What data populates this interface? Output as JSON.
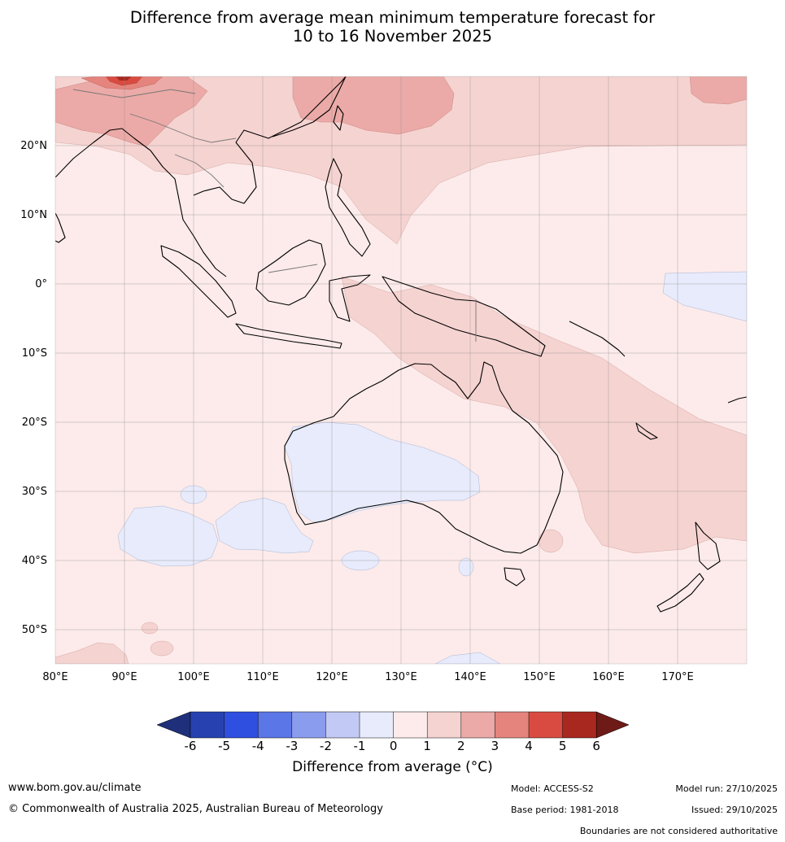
{
  "title_line1": "Difference from average mean minimum temperature forecast for",
  "title_line2": "10 to 16 November 2025",
  "lat_labels": [
    "20°N",
    "10°N",
    "0°",
    "10°S",
    "20°S",
    "30°S",
    "40°S",
    "50°S"
  ],
  "lon_labels": [
    "80°E",
    "90°E",
    "100°E",
    "110°E",
    "120°E",
    "130°E",
    "140°E",
    "150°E",
    "160°E",
    "170°E"
  ],
  "colorbar": {
    "ticks": [
      "-6",
      "-5",
      "-4",
      "-3",
      "-2",
      "-1",
      "0",
      "1",
      "2",
      "3",
      "4",
      "5",
      "6"
    ],
    "colors": [
      "#1f2f7a",
      "#2742b0",
      "#2f4fe0",
      "#5b76e6",
      "#8a9cee",
      "#c2c9f4",
      "#e7ebfb",
      "#fcebea",
      "#f5d3d1",
      "#ebaaa7",
      "#e4847d",
      "#d94b40",
      "#a8281f",
      "#6e1a16"
    ],
    "label": "Difference from average (°C)"
  },
  "footer": {
    "website": "www.bom.gov.au/climate",
    "copyright": "© Commonwealth of Australia 2025, Australian Bureau of Meteorology",
    "model": "Model: ACCESS-S2",
    "base_period": "Base period: 1981-2018",
    "model_run": "Model run: 27/10/2025",
    "issued": "Issued: 29/10/2025",
    "boundaries_note": "Boundaries are not considered authoritative"
  }
}
